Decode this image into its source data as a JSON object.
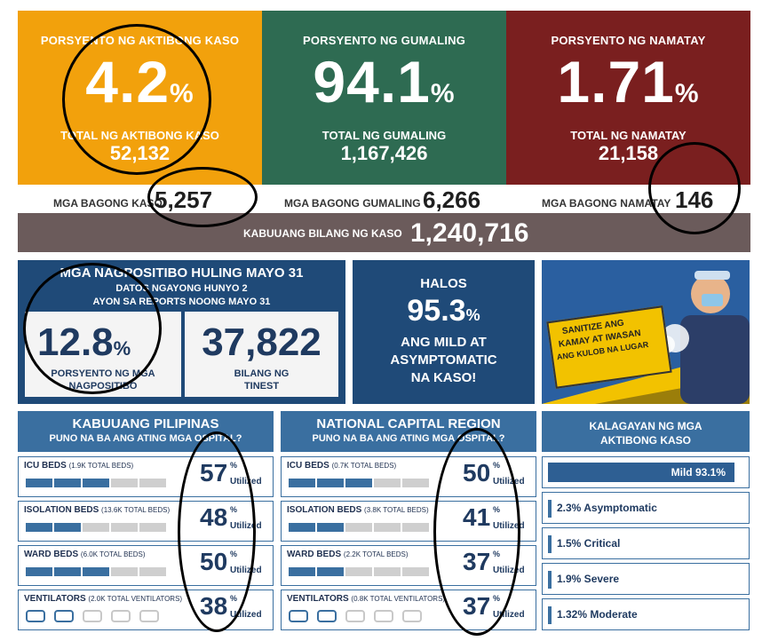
{
  "top": {
    "active": {
      "label": "PORSYENTO NG AKTIBONG KASO",
      "value": "4.2",
      "pct": "%",
      "sub": "TOTAL NG AKTIBONG KASO",
      "total": "52,132",
      "color": "#f2a10c"
    },
    "recovered": {
      "label": "PORSYENTO NG GUMALING",
      "value": "94.1",
      "pct": "%",
      "sub": "TOTAL NG GUMALING",
      "total": "1,167,426",
      "color": "#2e6b52"
    },
    "deaths": {
      "label": "PORSYENTO NG NAMATAY",
      "value": "1.71",
      "pct": "%",
      "sub": "TOTAL NG NAMATAY",
      "total": "21,158",
      "color": "#7a1f1f"
    }
  },
  "new": {
    "cases_label": "MGA BAGONG KASO",
    "cases": "5,257",
    "recovered_label": "MGA BAGONG GUMALING",
    "recovered": "6,266",
    "deaths_label": "MGA BAGONG NAMATAY",
    "deaths": "146"
  },
  "total": {
    "label": "KABUUANG BILANG NG KASO",
    "value": "1,240,716"
  },
  "positivity": {
    "title": "MGA NAGPOSITIBO HULING MAYO 31",
    "line1": "DATOS NGAYONG HUNYO 2",
    "line2": "AYON SA REPORTS NOONG MAYO 31",
    "rate": "12.8",
    "pct": "%",
    "rate_label1": "PORSYENTO NG MGA",
    "rate_label2": "NAGPOSITIBO",
    "tested": "37,822",
    "tested_label1": "BILANG NG",
    "tested_label2": "TINEST"
  },
  "mild": {
    "halos": "HALOS",
    "value": "95.3",
    "pct": "%",
    "l1": "ANG MILD AT",
    "l2": "ASYMPTOMATIC",
    "l3": "NA KASO!"
  },
  "poster": {
    "line1": "SANITIZE ANG",
    "line2": "KAMAY AT IWASAN",
    "line3": "ANG KULOB NA LUGAR"
  },
  "ph": {
    "title": "KABUUANG PILIPINAS",
    "subtitle": "PUNO NA BA ANG ATING MGA OSPITAL?",
    "rows": [
      {
        "name": "ICU BEDS",
        "note": "(1.9K TOTAL BEDS)",
        "value": "57",
        "fill": 0.57
      },
      {
        "name": "ISOLATION BEDS",
        "note": "(13.6K TOTAL BEDS)",
        "value": "48",
        "fill": 0.48
      },
      {
        "name": "WARD BEDS",
        "note": "(6.0K TOTAL BEDS)",
        "value": "50",
        "fill": 0.5
      },
      {
        "name": "VENTILATORS",
        "note": "(2.0K TOTAL VENTILATORS)",
        "value": "38",
        "fill": 0.38
      }
    ]
  },
  "ncr": {
    "title": "NATIONAL CAPITAL REGION",
    "subtitle": "PUNO NA BA ANG ATING MGA OSPITAL?",
    "rows": [
      {
        "name": "ICU BEDS",
        "note": "(0.7K TOTAL BEDS)",
        "value": "50",
        "fill": 0.5
      },
      {
        "name": "ISOLATION BEDS",
        "note": "(3.8K TOTAL BEDS)",
        "value": "41",
        "fill": 0.41
      },
      {
        "name": "WARD BEDS",
        "note": "(2.2K TOTAL BEDS)",
        "value": "37",
        "fill": 0.37
      },
      {
        "name": "VENTILATORS",
        "note": "(0.8K TOTAL VENTILATORS)",
        "value": "37",
        "fill": 0.37
      }
    ]
  },
  "util_pct": "%",
  "util_label": "Utilized",
  "status": {
    "title1": "KALAGAYAN NG MGA",
    "title2": "AKTIBONG KASO",
    "mild": "Mild 93.1%",
    "items": [
      "2.3% Asymptomatic",
      "1.5% Critical",
      "1.9% Severe",
      "1.32% Moderate"
    ]
  }
}
